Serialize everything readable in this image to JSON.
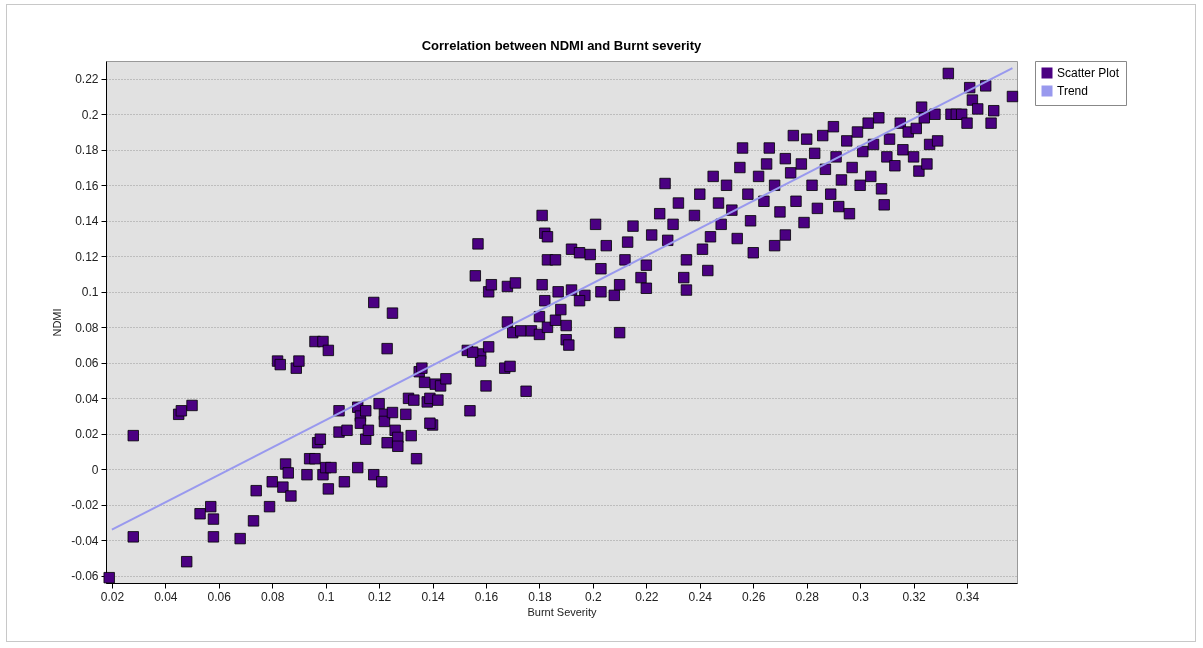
{
  "chart_data": {
    "type": "scatter",
    "title": "Correlation between NDMI and Burnt severity",
    "xlabel": "Burnt Severity",
    "ylabel": "NDMI",
    "xlim": [
      0.0178,
      0.3587
    ],
    "ylim": [
      -0.064,
      0.23
    ],
    "xticks": [
      0.02,
      0.04,
      0.06,
      0.08,
      0.1,
      0.12,
      0.14,
      0.16,
      0.18,
      0.2,
      0.22,
      0.24,
      0.26,
      0.28,
      0.3,
      0.32,
      0.34
    ],
    "yticks": [
      -0.06,
      -0.04,
      -0.02,
      0,
      0.02,
      0.04,
      0.06,
      0.08,
      0.1,
      0.12,
      0.14,
      0.16,
      0.18,
      0.2,
      0.22
    ],
    "grid": "y",
    "legend": "top right",
    "marker": "square",
    "series": [
      {
        "name": "Scatter Plot",
        "color": "#4b0082",
        "x": [
          0.019,
          0.028,
          0.028,
          0.045,
          0.046,
          0.05,
          0.048,
          0.053,
          0.057,
          0.058,
          0.058,
          0.068,
          0.073,
          0.074,
          0.079,
          0.08,
          0.082,
          0.083,
          0.084,
          0.085,
          0.086,
          0.087,
          0.089,
          0.09,
          0.093,
          0.094,
          0.096,
          0.096,
          0.097,
          0.098,
          0.099,
          0.099,
          0.1,
          0.101,
          0.101,
          0.102,
          0.105,
          0.105,
          0.107,
          0.108,
          0.112,
          0.112,
          0.113,
          0.113,
          0.115,
          0.115,
          0.116,
          0.118,
          0.118,
          0.12,
          0.121,
          0.122,
          0.122,
          0.123,
          0.123,
          0.125,
          0.125,
          0.126,
          0.127,
          0.127,
          0.13,
          0.131,
          0.132,
          0.133,
          0.134,
          0.135,
          0.136,
          0.137,
          0.138,
          0.139,
          0.14,
          0.141,
          0.143,
          0.145,
          0.139,
          0.142,
          0.153,
          0.157,
          0.156,
          0.154,
          0.16,
          0.161,
          0.162,
          0.168,
          0.171,
          0.168,
          0.17,
          0.173,
          0.177,
          0.18,
          0.175,
          0.167,
          0.169,
          0.158,
          0.158,
          0.155,
          0.161,
          0.181,
          0.182,
          0.183,
          0.183,
          0.186,
          0.181,
          0.182,
          0.18,
          0.183,
          0.186,
          0.188,
          0.19,
          0.19,
          0.191,
          0.187,
          0.192,
          0.197,
          0.195,
          0.192,
          0.195,
          0.199,
          0.203,
          0.201,
          0.205,
          0.21,
          0.203,
          0.208,
          0.21,
          0.212,
          0.213,
          0.215,
          0.218,
          0.22,
          0.22,
          0.222,
          0.225,
          0.227,
          0.228,
          0.23,
          0.232,
          0.234,
          0.235,
          0.235,
          0.238,
          0.24,
          0.241,
          0.243,
          0.244,
          0.245,
          0.247,
          0.248,
          0.25,
          0.252,
          0.254,
          0.255,
          0.256,
          0.258,
          0.259,
          0.26,
          0.262,
          0.264,
          0.265,
          0.266,
          0.268,
          0.268,
          0.27,
          0.272,
          0.272,
          0.274,
          0.275,
          0.276,
          0.278,
          0.279,
          0.28,
          0.282,
          0.283,
          0.284,
          0.286,
          0.287,
          0.289,
          0.29,
          0.291,
          0.292,
          0.293,
          0.295,
          0.296,
          0.297,
          0.299,
          0.3,
          0.301,
          0.303,
          0.304,
          0.305,
          0.307,
          0.308,
          0.309,
          0.31,
          0.311,
          0.313,
          0.315,
          0.316,
          0.318,
          0.32,
          0.321,
          0.322,
          0.323,
          0.324,
          0.325,
          0.326,
          0.328,
          0.329,
          0.333,
          0.334,
          0.336,
          0.338,
          0.34,
          0.341,
          0.342,
          0.344,
          0.347,
          0.349,
          0.35,
          0.357
        ],
        "values": [
          -0.061,
          0.019,
          -0.038,
          0.031,
          0.033,
          0.036,
          -0.052,
          -0.025,
          -0.021,
          -0.028,
          -0.038,
          -0.039,
          -0.029,
          -0.012,
          -0.021,
          -0.007,
          0.061,
          0.059,
          -0.01,
          0.003,
          -0.002,
          -0.015,
          0.057,
          0.061,
          -0.003,
          0.006,
          0.072,
          0.006,
          0.015,
          0.017,
          0.072,
          -0.003,
          0.001,
          -0.011,
          0.067,
          0.001,
          0.033,
          0.021,
          -0.007,
          0.022,
          0.001,
          0.035,
          0.03,
          0.026,
          0.033,
          0.017,
          0.022,
          0.094,
          -0.003,
          0.037,
          -0.007,
          0.031,
          0.027,
          0.068,
          0.015,
          0.088,
          0.032,
          0.022,
          0.018,
          0.013,
          0.031,
          0.04,
          0.019,
          0.039,
          0.006,
          0.055,
          0.057,
          0.049,
          0.038,
          0.04,
          0.025,
          0.048,
          0.047,
          0.051,
          0.026,
          0.039,
          0.067,
          0.127,
          0.109,
          0.033,
          0.047,
          0.1,
          0.104,
          0.103,
          0.105,
          0.083,
          0.077,
          0.078,
          0.078,
          0.076,
          0.044,
          0.057,
          0.058,
          0.065,
          0.061,
          0.066,
          0.069,
          0.143,
          0.133,
          0.131,
          0.118,
          0.118,
          0.104,
          0.095,
          0.086,
          0.08,
          0.084,
          0.09,
          0.081,
          0.073,
          0.07,
          0.1,
          0.101,
          0.098,
          0.095,
          0.124,
          0.122,
          0.121,
          0.113,
          0.138,
          0.126,
          0.077,
          0.1,
          0.098,
          0.104,
          0.118,
          0.128,
          0.137,
          0.108,
          0.102,
          0.115,
          0.132,
          0.144,
          0.161,
          0.129,
          0.138,
          0.15,
          0.108,
          0.101,
          0.118,
          0.143,
          0.155,
          0.124,
          0.112,
          0.131,
          0.165,
          0.15,
          0.138,
          0.16,
          0.146,
          0.13,
          0.17,
          0.181,
          0.155,
          0.14,
          0.122,
          0.165,
          0.151,
          0.172,
          0.181,
          0.126,
          0.16,
          0.145,
          0.175,
          0.132,
          0.167,
          0.188,
          0.151,
          0.172,
          0.139,
          0.186,
          0.16,
          0.178,
          0.147,
          0.188,
          0.169,
          0.155,
          0.193,
          0.176,
          0.148,
          0.163,
          0.185,
          0.144,
          0.17,
          0.19,
          0.16,
          0.179,
          0.195,
          0.165,
          0.183,
          0.198,
          0.158,
          0.149,
          0.176,
          0.186,
          0.171,
          0.195,
          0.18,
          0.19,
          0.176,
          0.192,
          0.168,
          0.204,
          0.198,
          0.172,
          0.183,
          0.2,
          0.185,
          0.223,
          0.2,
          0.2,
          0.2,
          0.195,
          0.215,
          0.208,
          0.203,
          0.216,
          0.195,
          0.202,
          0.21
        ]
      },
      {
        "name": "Trend",
        "type": "line",
        "marker": "none",
        "color": "#9999ee",
        "x": [
          0.02,
          0.357
        ],
        "values": [
          -0.034,
          0.226
        ]
      }
    ]
  }
}
